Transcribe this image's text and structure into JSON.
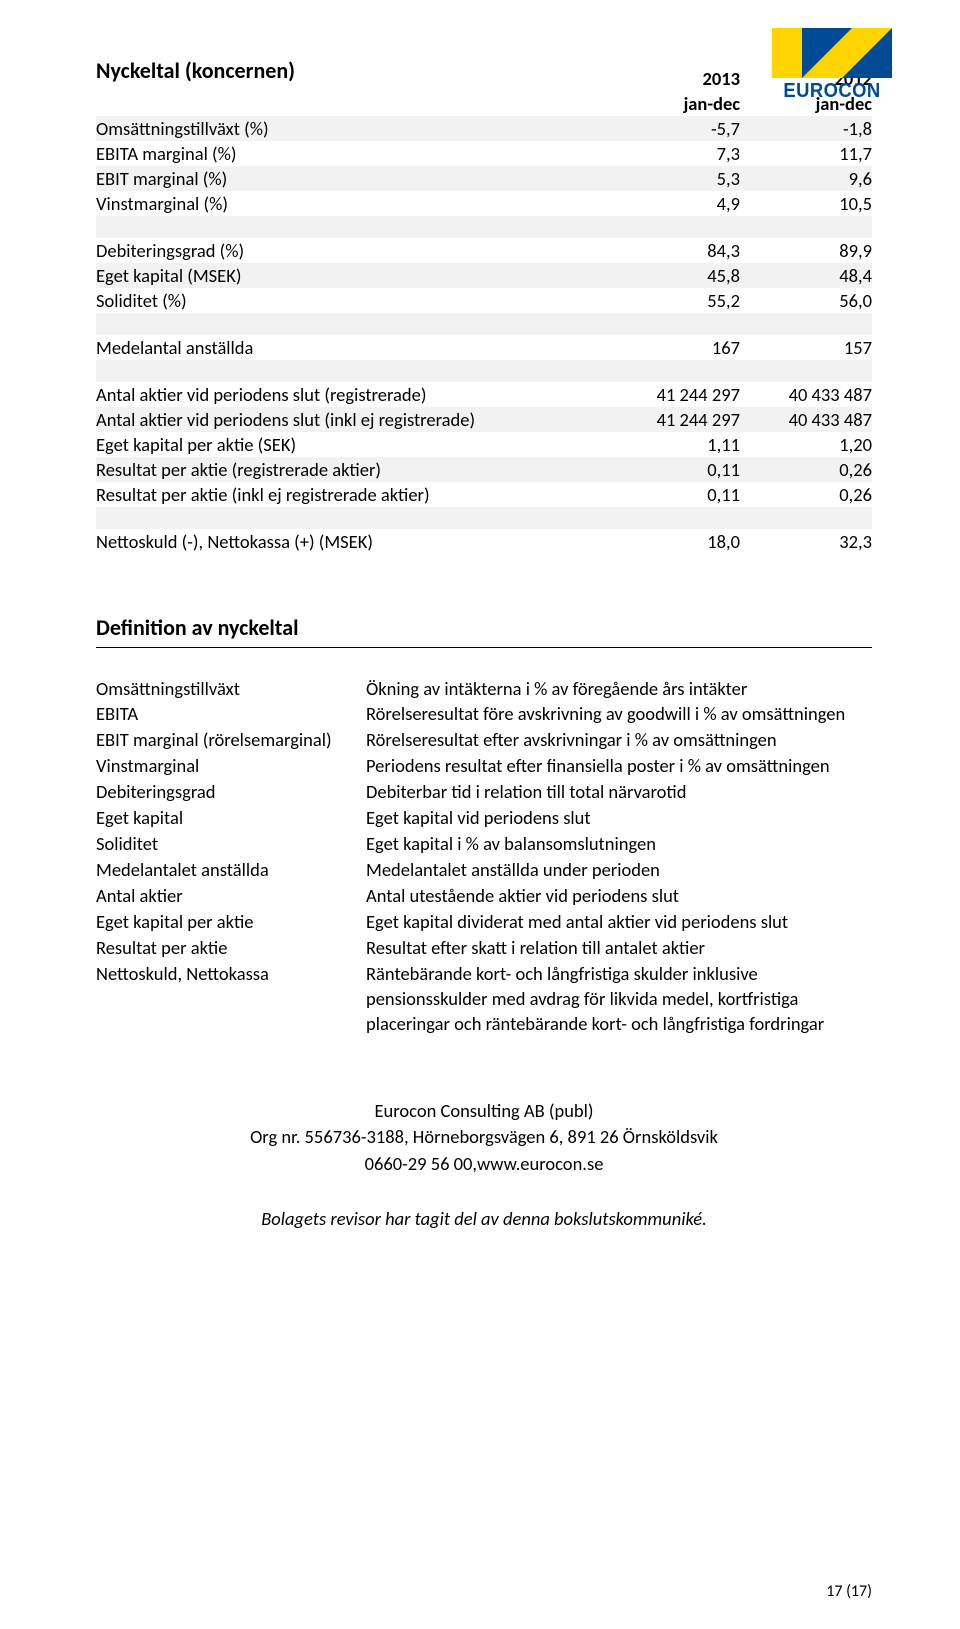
{
  "logo": {
    "text": "EUROCON"
  },
  "table1": {
    "title": "Nyckeltal (koncernen)",
    "col1_year": "2013",
    "col2_year": "2012",
    "col1_period": "jan-dec",
    "col2_period": "jan-dec",
    "rows": {
      "omsattning": {
        "label": "Omsättningstillväxt (%)",
        "v1": "-5,7",
        "v2": "-1,8"
      },
      "ebita": {
        "label": "EBITA marginal (%)",
        "v1": "7,3",
        "v2": "11,7"
      },
      "ebit": {
        "label": "EBIT marginal (%)",
        "v1": "5,3",
        "v2": "9,6"
      },
      "vinst": {
        "label": "Vinstmarginal (%)",
        "v1": "4,9",
        "v2": "10,5"
      },
      "debit": {
        "label": "Debiteringsgrad (%)",
        "v1": "84,3",
        "v2": "89,9"
      },
      "eget_kap": {
        "label": "Eget kapital (MSEK)",
        "v1": "45,8",
        "v2": "48,4"
      },
      "soliditet": {
        "label": "Soliditet (%)",
        "v1": "55,2",
        "v2": "56,0"
      },
      "medel": {
        "label": "Medelantal anställda",
        "v1": "167",
        "v2": "157"
      },
      "aktier_reg": {
        "label": "Antal aktier vid periodens slut (registrerade)",
        "v1": "41 244 297",
        "v2": "40 433 487"
      },
      "aktier_ejreg": {
        "label": "Antal aktier vid periodens slut (inkl ej registrerade)",
        "v1": "41 244 297",
        "v2": "40 433 487"
      },
      "egkap_aktie": {
        "label": "Eget kapital per aktie (SEK)",
        "v1": "1,11",
        "v2": "1,20"
      },
      "res_reg": {
        "label": "Resultat per aktie (registrerade aktier)",
        "v1": "0,11",
        "v2": "0,26"
      },
      "res_ejreg": {
        "label": "Resultat per aktie (inkl ej registrerade aktier)",
        "v1": "0,11",
        "v2": "0,26"
      },
      "netto": {
        "label": "Nettoskuld (-), Nettokassa (+) (MSEK)",
        "v1": "18,0",
        "v2": "32,3"
      }
    }
  },
  "defs": {
    "heading": "Definition av nyckeltal",
    "items": [
      {
        "term": "Omsättningstillväxt",
        "def": "Ökning av intäkterna i % av föregående års intäkter"
      },
      {
        "term": "EBITA",
        "def": "Rörelseresultat före avskrivning av goodwill i % av omsättningen"
      },
      {
        "term": "EBIT marginal (rörelsemarginal)",
        "def": "Rörelseresultat efter avskrivningar i % av omsättningen"
      },
      {
        "term": "Vinstmarginal",
        "def": "Periodens resultat efter finansiella poster i % av omsättningen"
      },
      {
        "term": "Debiteringsgrad",
        "def": "Debiterbar tid i relation till total närvarotid"
      },
      {
        "term": "Eget kapital",
        "def": "Eget kapital vid periodens slut"
      },
      {
        "term": "Soliditet",
        "def": "Eget kapital i % av balansomslutningen"
      },
      {
        "term": "Medelantalet anställda",
        "def": "Medelantalet anställda under perioden"
      },
      {
        "term": "Antal aktier",
        "def": "Antal utestående aktier vid periodens slut"
      },
      {
        "term": "Eget kapital per aktie",
        "def": "Eget kapital dividerat med antal aktier vid periodens slut"
      },
      {
        "term": "Resultat per aktie",
        "def": "Resultat efter skatt i relation till antalet aktier"
      },
      {
        "term": "Nettoskuld, Nettokassa",
        "def": "Räntebärande kort- och långfristiga skulder inklusive pensionsskulder med avdrag för likvida medel, kortfristiga placeringar och räntebärande kort- och långfristiga fordringar"
      }
    ]
  },
  "footer": {
    "line1": "Eurocon Consulting AB (publ)",
    "line2": "Org nr. 556736-3188, Hörneborgsvägen 6, 891 26 Örnsköldsvik",
    "line3": "0660-29 56 00,www.eurocon.se",
    "revisor": "Bolagets revisor har tagit del av denna bokslutskommuniké.",
    "pagenum": "17 (17)"
  }
}
